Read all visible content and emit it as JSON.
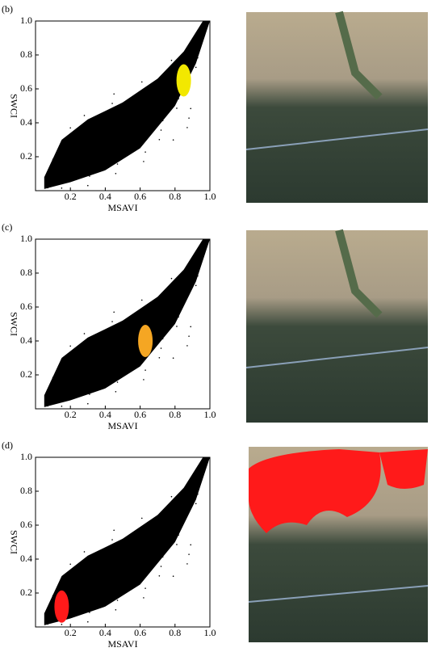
{
  "chart_data": [
    {
      "type": "scatter",
      "title": "(b)",
      "x_label": "MSAVI",
      "y_label": "SWCI",
      "xlim": [
        0,
        1
      ],
      "ylim": [
        0,
        1
      ],
      "xticks": [
        0.2,
        0.4,
        0.6,
        0.8,
        {
          "value": 1,
          "label": "1.0"
        }
      ],
      "yticks": [
        0.2,
        0.4,
        0.6,
        0.8,
        {
          "value": 1,
          "label": "1.0"
        }
      ],
      "series": [
        {
          "color": "#f2e800",
          "x": [
            0.85
          ],
          "y": [
            0.65
          ]
        }
      ]
    },
    {
      "type": "scatter",
      "title": "(c)",
      "x_label": "MSAVI",
      "y_label": "SWCI",
      "xlim": [
        0,
        1
      ],
      "ylim": [
        0,
        1
      ],
      "xticks": [
        0.2,
        0.4,
        0.6,
        0.8,
        {
          "value": 1,
          "label": "1.0"
        }
      ],
      "yticks": [
        0.2,
        0.4,
        0.6,
        0.8,
        {
          "value": 1,
          "label": "1.0"
        }
      ],
      "series": [
        {
          "color": "#f5a623",
          "x": [
            0.63
          ],
          "y": [
            0.4
          ]
        }
      ]
    },
    {
      "type": "scatter",
      "title": "(d)",
      "x_label": "MSAVI",
      "y_label": "SWCI",
      "xlim": [
        0,
        1
      ],
      "ylim": [
        0,
        1
      ],
      "xticks": [
        0.2,
        0.4,
        0.6,
        0.8,
        {
          "value": 1,
          "label": "1.0"
        }
      ],
      "yticks": [
        0.2,
        0.4,
        0.6,
        0.8,
        {
          "value": 1,
          "label": "1.0"
        }
      ],
      "series": [
        {
          "color": "#ff1a1a",
          "x": [
            0.15
          ],
          "y": [
            0.12
          ]
        }
      ]
    }
  ]
}
